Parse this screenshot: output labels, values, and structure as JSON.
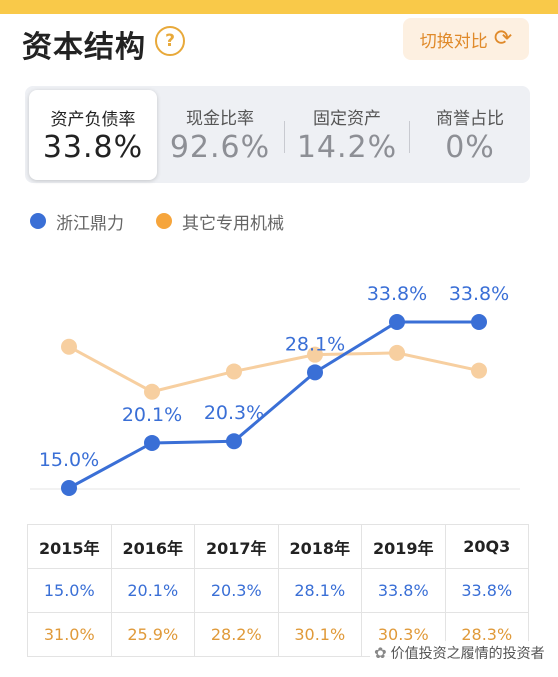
{
  "header": {
    "title": "资本结构",
    "help_glyph": "?",
    "switch_label": "切换对比",
    "switch_icon": "refresh-icon"
  },
  "metrics": [
    {
      "label": "资产负债率",
      "value": "33.8%",
      "active": true
    },
    {
      "label": "现金比率",
      "value": "92.6%",
      "active": false
    },
    {
      "label": "固定资产",
      "value": "14.2%",
      "active": false
    },
    {
      "label": "商誉占比",
      "value": "0%",
      "active": false
    }
  ],
  "legend": [
    {
      "label": "浙江鼎力",
      "color": "#3a6fd6"
    },
    {
      "label": "其它专用机械",
      "color": "#f6a53c"
    }
  ],
  "chart_data": {
    "type": "line",
    "categories": [
      "2015年",
      "2016年",
      "2017年",
      "2018年",
      "2019年",
      "20Q3"
    ],
    "series": [
      {
        "name": "浙江鼎力",
        "values": [
          15.0,
          20.1,
          20.3,
          28.1,
          33.8,
          33.8
        ],
        "color": "#3a6fd6",
        "labels": [
          "15.0%",
          "20.1%",
          "20.3%",
          "28.1%",
          "33.8%",
          "33.8%"
        ]
      },
      {
        "name": "其它专用机械",
        "values": [
          31.0,
          25.9,
          28.2,
          30.1,
          30.3,
          28.3
        ],
        "color": "#f7cfa0"
      }
    ],
    "ylim": [
      15.0,
      33.8
    ],
    "grid": false,
    "legend_position": "top-left"
  },
  "table": {
    "headers": [
      "2015年",
      "2016年",
      "2017年",
      "2018年",
      "2019年",
      "20Q3"
    ],
    "company_row": [
      "15.0%",
      "20.1%",
      "20.3%",
      "28.1%",
      "33.8%",
      "33.8%"
    ],
    "industry_row": [
      "31.0%",
      "25.9%",
      "28.2%",
      "30.1%",
      "30.3%",
      "28.3%"
    ]
  },
  "watermark": {
    "text": "价值投资之履情的投资者",
    "icon": "wechat-icon"
  }
}
